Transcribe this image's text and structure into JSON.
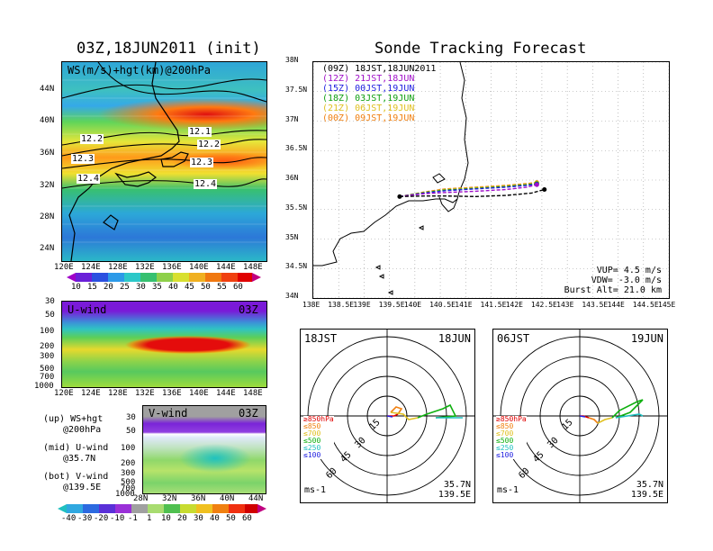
{
  "header": {
    "left_title": "03Z,18JUN2011 (init)",
    "right_title": "Sonde Tracking Forecast"
  },
  "ws_map": {
    "label": "WS(m/s)+hgt(km)@200hPa",
    "contour_labels": [
      "12.1",
      "12.2",
      "12.2",
      "12.3",
      "12.3",
      "12.4",
      "12.4"
    ],
    "x_ticks": [
      "120E",
      "124E",
      "128E",
      "132E",
      "136E",
      "140E",
      "144E",
      "148E"
    ],
    "y_ticks": [
      "44N",
      "40N",
      "36N",
      "32N",
      "28N",
      "24N"
    ],
    "colorbar": [
      "10",
      "15",
      "20",
      "25",
      "30",
      "35",
      "40",
      "45",
      "50",
      "55",
      "60"
    ]
  },
  "u_panel": {
    "label": "U-wind",
    "time": "03Z",
    "y_ticks": [
      "30",
      "50",
      "100",
      "200",
      "300",
      "500",
      "700",
      "1000"
    ],
    "x_ticks": [
      "120E",
      "124E",
      "128E",
      "132E",
      "136E",
      "140E",
      "144E",
      "148E"
    ]
  },
  "v_panel": {
    "label": "V-wind",
    "time": "03Z",
    "y_ticks": [
      "30",
      "50",
      "100",
      "200",
      "300",
      "500",
      "700",
      "1000"
    ],
    "x_ticks": [
      "28N",
      "32N",
      "36N",
      "40N",
      "44N"
    ],
    "colorbar": [
      "-40",
      "-30",
      "-20",
      "-10",
      "-1",
      "1",
      "10",
      "20",
      "30",
      "40",
      "50",
      "60"
    ]
  },
  "notes": [
    "(up) WS+hgt",
    "@200hPa",
    "(mid) U-wind",
    "@35.7N",
    "(bot) V-wind",
    "@139.5E"
  ],
  "track_map": {
    "x_ticks": [
      "138E",
      "138.5E",
      "139E",
      "139.5E",
      "140E",
      "140.5E",
      "141E",
      "141.5E",
      "142E",
      "142.5E",
      "143E",
      "143.5E",
      "144E",
      "144.5E",
      "145E"
    ],
    "y_ticks": [
      "38N",
      "37.5N",
      "37N",
      "36.5N",
      "36N",
      "35.5N",
      "35N",
      "34.5N",
      "34N"
    ],
    "legend": [
      {
        "code": "(09Z)",
        "time": "18JST,18JUN2011",
        "color": "#000000"
      },
      {
        "code": "(12Z)",
        "time": "21JST,18JUN",
        "color": "#a010c8"
      },
      {
        "code": "(15Z)",
        "time": "00JST,19JUN",
        "color": "#2020e0"
      },
      {
        "code": "(18Z)",
        "time": "03JST,19JUN",
        "color": "#10a010"
      },
      {
        "code": "(21Z)",
        "time": "06JST,19JUN",
        "color": "#e0c020"
      },
      {
        "code": "(00Z)",
        "time": "09JST,19JUN",
        "color": "#f08010"
      }
    ],
    "params": [
      "VUP= 4.5 m/s",
      "VDW= -3.0 m/s",
      "Burst Alt= 21.0 km"
    ]
  },
  "hodo_left": {
    "time_left": "18JST",
    "time_right": "18JUN",
    "ring_labels": [
      "15",
      "30",
      "45",
      "60"
    ],
    "levels": [
      "≥850hPa",
      "≤850",
      "≤700",
      "≤500",
      "≤250",
      "≤100"
    ],
    "level_colors": [
      "#e00000",
      "#f08010",
      "#e0c020",
      "#10b010",
      "#20c0c0",
      "#2020e0"
    ],
    "unit": "ms-1",
    "lat": "35.7N",
    "lon": "139.5E"
  },
  "hodo_right": {
    "time_left": "06JST",
    "time_right": "19JUN",
    "ring_labels": [
      "15",
      "30",
      "45",
      "60"
    ],
    "levels": [
      "≥850hPa",
      "≤850",
      "≤700",
      "≤500",
      "≤250",
      "≤100"
    ],
    "level_colors": [
      "#e00000",
      "#f08010",
      "#e0c020",
      "#10b010",
      "#20c0c0",
      "#2020e0"
    ],
    "unit": "ms-1",
    "lat": "35.7N",
    "lon": "139.5E"
  },
  "chart_data": [
    {
      "type": "heatmap",
      "title": "WS(m/s)+hgt(km)@200hPa",
      "x_range": [
        "120E",
        "150E"
      ],
      "y_range": [
        "22N",
        "48N"
      ],
      "contours_km": [
        12.1,
        12.2,
        12.3,
        12.4
      ],
      "colorbar_levels": [
        10,
        15,
        20,
        25,
        30,
        35,
        40,
        45,
        50,
        55,
        60
      ]
    },
    {
      "type": "heatmap",
      "title": "U-wind",
      "x_range": [
        "120E",
        "150E"
      ],
      "y_levels_hPa": [
        30,
        50,
        100,
        200,
        300,
        500,
        700,
        1000
      ]
    },
    {
      "type": "heatmap",
      "title": "V-wind",
      "x_range": [
        "28N",
        "44N"
      ],
      "y_levels_hPa": [
        30,
        50,
        100,
        200,
        300,
        500,
        700,
        1000
      ],
      "colorbar_levels": [
        -40,
        -30,
        -20,
        -10,
        -1,
        1,
        10,
        20,
        30,
        40,
        50,
        60
      ]
    },
    {
      "type": "line",
      "title": "Sonde Tracking Forecast",
      "xlim": [
        138,
        145
      ],
      "ylim": [
        34,
        38
      ],
      "launch": {
        "lon": 139.7,
        "lat": 35.72
      },
      "series": [
        {
          "name": "(09Z) 18JST,18JUN2011",
          "color": "#000000",
          "lon": [
            139.7,
            140.2,
            140.6,
            141.2,
            141.8,
            142.3,
            142.55
          ],
          "lat": [
            35.72,
            35.73,
            35.73,
            35.72,
            35.74,
            35.78,
            35.84
          ]
        },
        {
          "name": "(12Z) 21JST,18JUN",
          "color": "#a010c8",
          "lon": [
            139.7,
            140.2,
            140.6,
            141.2,
            141.8,
            142.2,
            142.4
          ],
          "lat": [
            35.72,
            35.77,
            35.79,
            35.81,
            35.84,
            35.88,
            35.92
          ]
        },
        {
          "name": "(15Z) 00JST,19JUN",
          "color": "#2020e0",
          "lon": [
            139.7,
            140.2,
            140.6,
            141.2,
            141.8,
            142.2,
            142.4
          ],
          "lat": [
            35.72,
            35.78,
            35.82,
            35.85,
            35.88,
            35.91,
            35.93
          ]
        },
        {
          "name": "(18Z) 03JST,19JUN",
          "color": "#10a010",
          "lon": [
            139.7,
            140.2,
            140.6,
            141.2,
            141.8,
            142.2,
            142.4
          ],
          "lat": [
            35.72,
            35.79,
            35.83,
            35.86,
            35.89,
            35.92,
            35.94
          ]
        },
        {
          "name": "(21Z) 06JST,19JUN",
          "color": "#e0c020",
          "lon": [
            139.7,
            140.2,
            140.6,
            141.2,
            141.8,
            142.2,
            142.4
          ],
          "lat": [
            35.72,
            35.79,
            35.84,
            35.87,
            35.9,
            35.93,
            35.95
          ]
        },
        {
          "name": "(00Z) 09JST,19JUN",
          "color": "#f08010",
          "lon": [
            139.7,
            140.2,
            140.6,
            141.2,
            141.8,
            142.2,
            142.4
          ],
          "lat": [
            35.72,
            35.8,
            35.85,
            35.88,
            35.91,
            35.94,
            35.96
          ]
        }
      ]
    }
  ]
}
